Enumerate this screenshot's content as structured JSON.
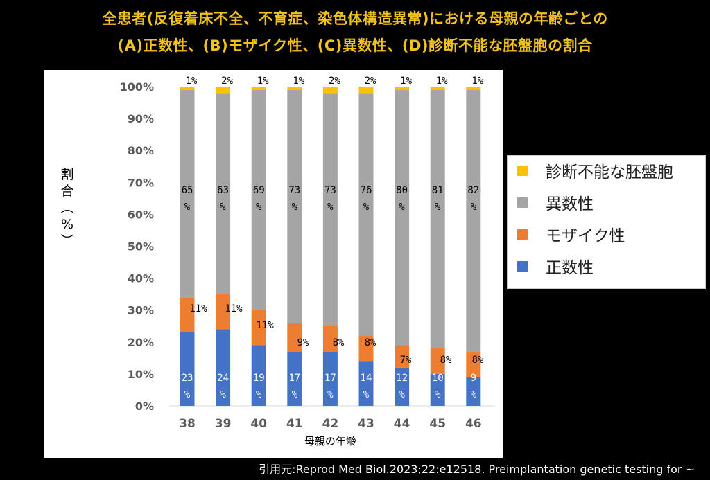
{
  "title_line1": "全患者(反復着床不全、不育症、染色体構造異常)における母親の年齢ごとの",
  "title_line2": "(A)正数性、(B)モザイク性、(C)異数性、(D)診断不能な胚盤胞の割合",
  "citation": "引用元:Reprod Med Biol.2023;22:e12518. Preimplantation genetic testing for ~",
  "colors": {
    "normal": "#4472c4",
    "mosaic": "#ed7d31",
    "aneuploid": "#a5a5a5",
    "undiagnosable": "#ffc000",
    "title": "#f2c21a"
  },
  "legend": [
    {
      "label": "診断不能な胚盤胞",
      "color": "#ffc000"
    },
    {
      "label": "異数性",
      "color": "#a5a5a5"
    },
    {
      "label": "モザイク性",
      "color": "#ed7d31"
    },
    {
      "label": "正数性",
      "color": "#4472c4"
    }
  ],
  "chart_data": {
    "type": "bar",
    "stacked": true,
    "xlabel": "母親の年齢",
    "ylabel": [
      "割",
      "合",
      "︵",
      "%",
      "︶"
    ],
    "ylim": [
      0,
      100
    ],
    "yticks": [
      "0%",
      "10%",
      "20%",
      "30%",
      "40%",
      "50%",
      "60%",
      "70%",
      "80%",
      "90%",
      "100%"
    ],
    "categories": [
      "38",
      "39",
      "40",
      "41",
      "42",
      "43",
      "44",
      "45",
      "46"
    ],
    "series": [
      {
        "name": "正数性",
        "color": "#4472c4",
        "values": [
          23,
          24,
          19,
          17,
          17,
          14,
          12,
          10,
          9
        ]
      },
      {
        "name": "モザイク性",
        "color": "#ed7d31",
        "values": [
          11,
          11,
          11,
          9,
          8,
          8,
          7,
          8,
          8
        ]
      },
      {
        "name": "異数性",
        "color": "#a5a5a5",
        "values": [
          65,
          63,
          69,
          73,
          73,
          76,
          80,
          81,
          82
        ]
      },
      {
        "name": "診断不能な胚盤胞",
        "color": "#ffc000",
        "values": [
          1,
          2,
          1,
          1,
          2,
          2,
          1,
          1,
          1
        ]
      }
    ],
    "data_labels": {
      "正数性": [
        [
          "23",
          "%"
        ],
        [
          "24",
          "%"
        ],
        [
          "19",
          "%"
        ],
        [
          "17",
          "%"
        ],
        [
          "17",
          "%"
        ],
        [
          "14",
          "%"
        ],
        [
          "12",
          "%"
        ],
        [
          "10",
          "%"
        ],
        [
          "9",
          "%"
        ]
      ],
      "モザイク性": [
        [
          "11%"
        ],
        [
          "11%"
        ],
        [
          "11%"
        ],
        [
          "9%"
        ],
        [
          "8%"
        ],
        [
          "8%"
        ],
        [
          "7%"
        ],
        [
          "8%"
        ],
        [
          "8%"
        ]
      ],
      "異数性": [
        [
          "65",
          "%"
        ],
        [
          "63",
          "%"
        ],
        [
          "69",
          "%"
        ],
        [
          "73",
          "%"
        ],
        [
          "73",
          "%"
        ],
        [
          "76",
          "%"
        ],
        [
          "80",
          "%"
        ],
        [
          "81",
          "%"
        ],
        [
          "82",
          "%"
        ]
      ],
      "診断不能な胚盤胞": [
        [
          "1%"
        ],
        [
          "2%"
        ],
        [
          "1%"
        ],
        [
          "1%"
        ],
        [
          "2%"
        ],
        [
          "2%"
        ],
        [
          "1%"
        ],
        [
          "1%"
        ],
        [
          "1%"
        ]
      ]
    },
    "grid": false,
    "legend_position": "right"
  }
}
